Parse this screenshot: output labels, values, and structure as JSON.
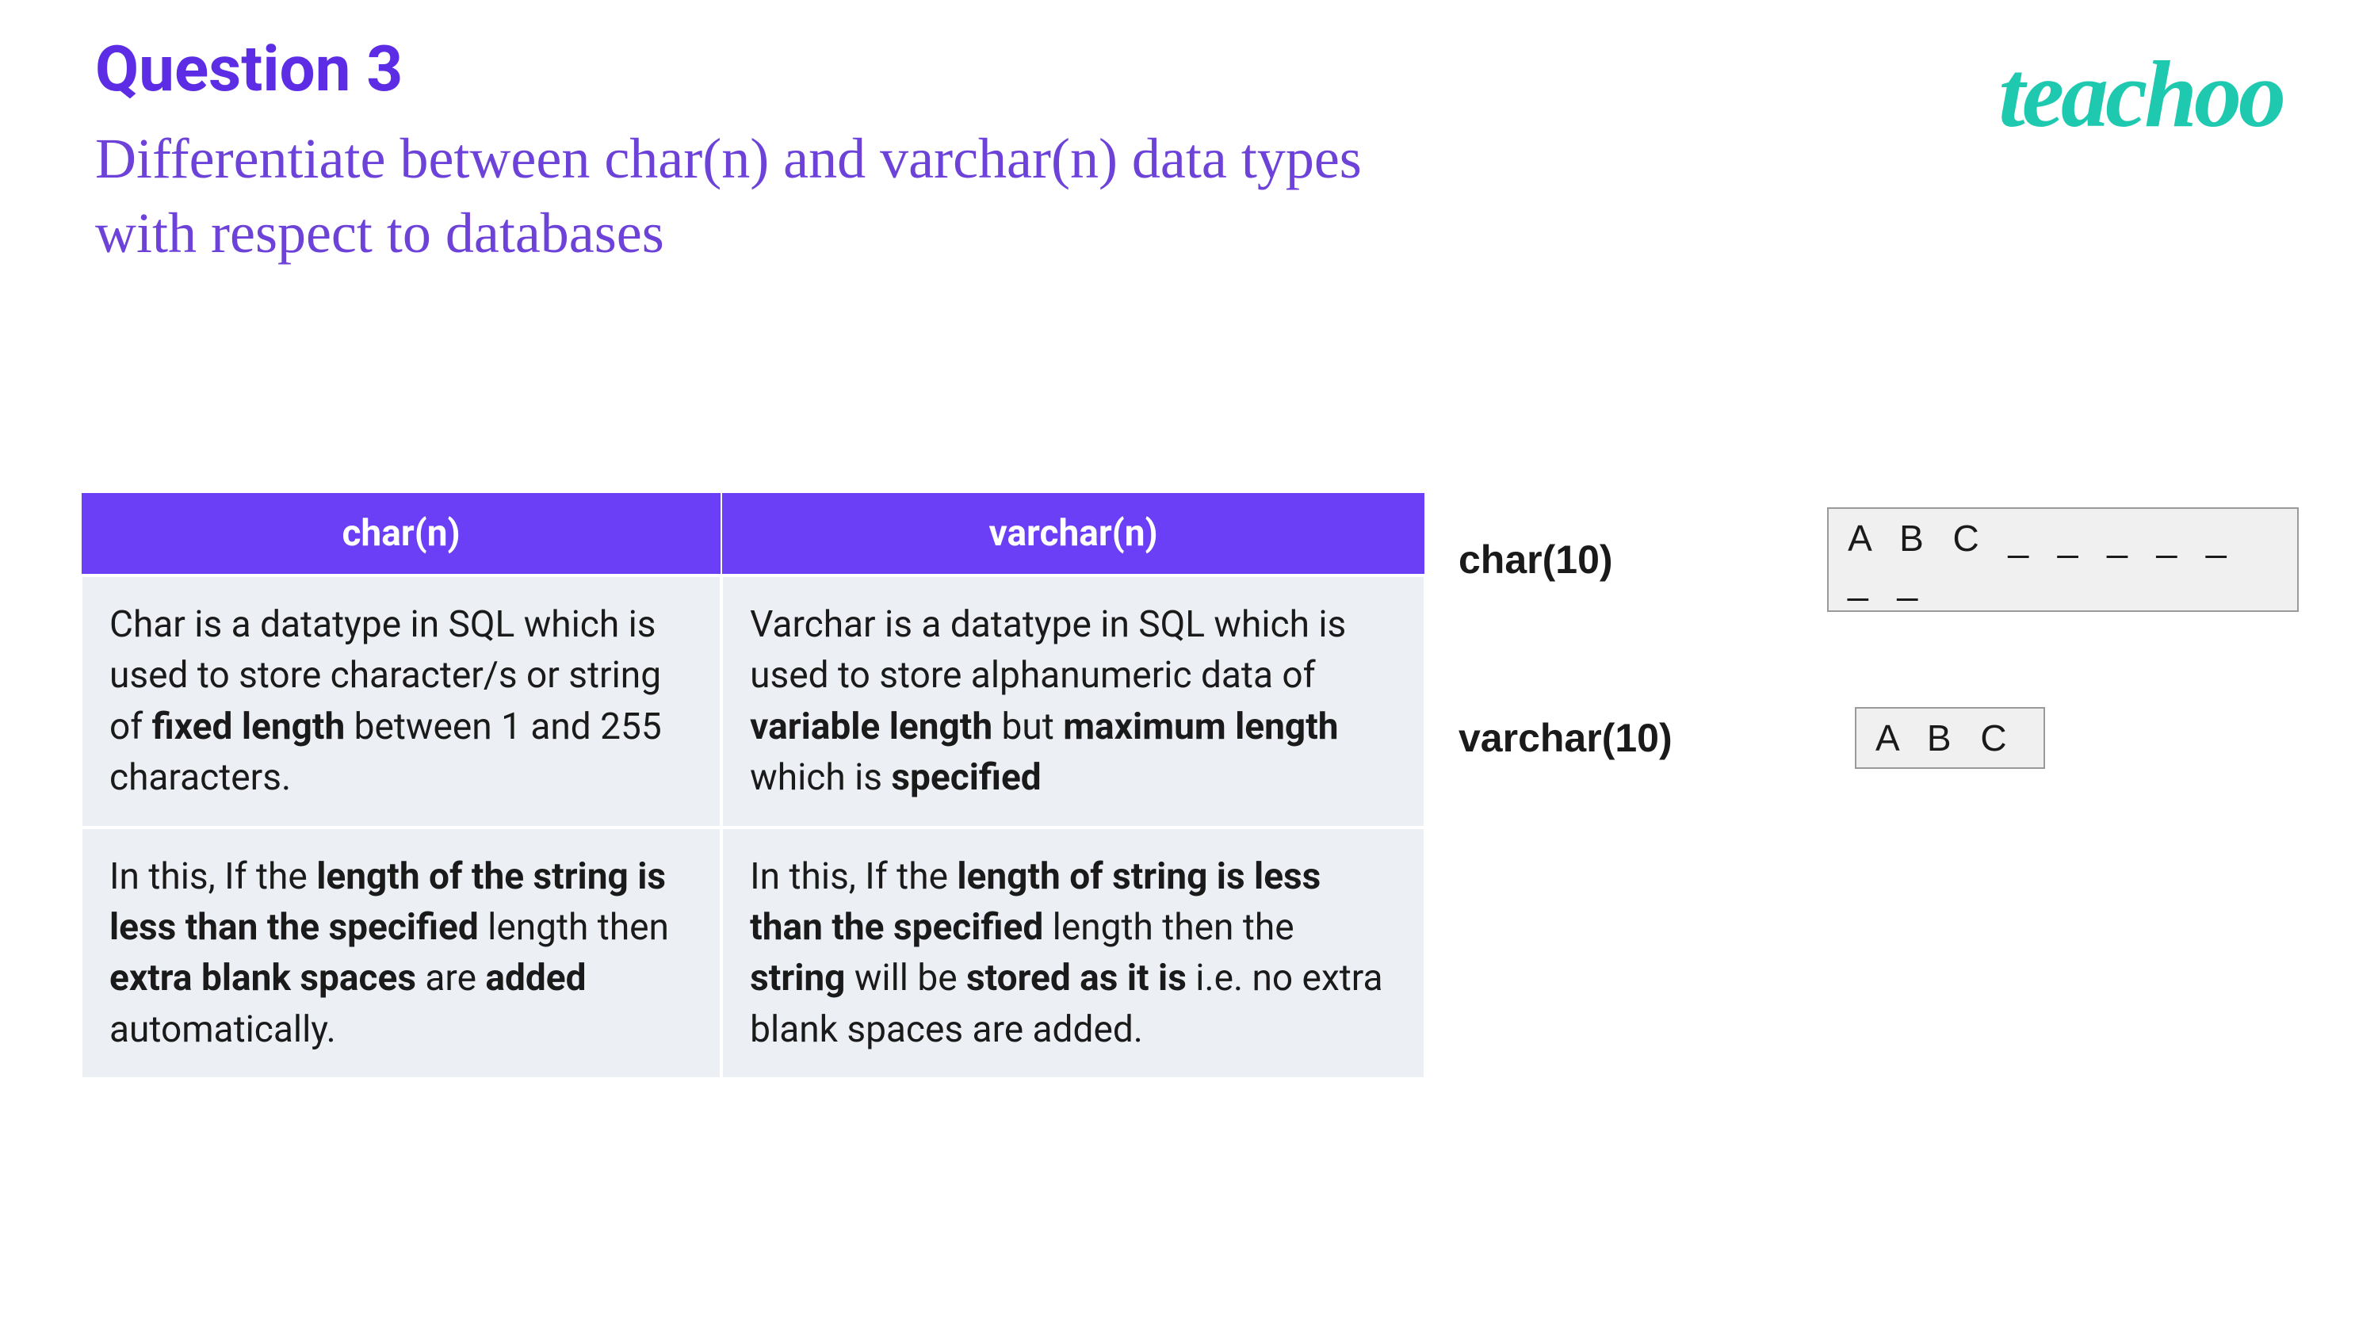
{
  "colors": {
    "title_purple": "#5d2de6",
    "subtitle_purple": "#6d42d9",
    "logo_teal": "#1fc9b0",
    "table_header_bg": "#6b3ff5",
    "table_header_text": "#ffffff",
    "table_cell_bg": "#eceff4",
    "table_border": "#ffffff",
    "example_box_bg": "#f0f0f0",
    "example_box_border": "#9a9a9a",
    "text_black": "#1a1a1a"
  },
  "header": {
    "question_number": "Question 3",
    "question_text": "Differentiate between char(n) and varchar(n) data types with respect to databases",
    "logo": "teachoo"
  },
  "table": {
    "columns": [
      "char(n)",
      "varchar(n)"
    ],
    "rows": [
      [
        {
          "segments": [
            {
              "t": "Char is a datatype in SQL which is used to store character/s or string of ",
              "b": false
            },
            {
              "t": "fixed length",
              "b": true
            },
            {
              "t": " between 1 and 255 characters.",
              "b": false
            }
          ]
        },
        {
          "segments": [
            {
              "t": "Varchar is a datatype in SQL which is used to store alphanumeric data of ",
              "b": false
            },
            {
              "t": "variable length",
              "b": true
            },
            {
              "t": " but ",
              "b": false
            },
            {
              "t": "maximum length",
              "b": true
            },
            {
              "t": " which is ",
              "b": false
            },
            {
              "t": "specified",
              "b": true
            }
          ]
        }
      ],
      [
        {
          "segments": [
            {
              "t": "In this, If the ",
              "b": false
            },
            {
              "t": "length of the string is less than the specified",
              "b": true
            },
            {
              "t": " length then ",
              "b": false
            },
            {
              "t": "extra blank spaces",
              "b": true
            },
            {
              "t": " are ",
              "b": false
            },
            {
              "t": "added",
              "b": true
            },
            {
              "t": " automatically.",
              "b": false
            }
          ]
        },
        {
          "segments": [
            {
              "t": "In this, If the ",
              "b": false
            },
            {
              "t": "length of string is less than the specified",
              "b": true
            },
            {
              "t": " length then the ",
              "b": false
            },
            {
              "t": "string",
              "b": true
            },
            {
              "t": " will be ",
              "b": false
            },
            {
              "t": "stored as it is",
              "b": true
            },
            {
              "t": " i.e. no extra blank spaces are added.",
              "b": false
            }
          ]
        }
      ]
    ]
  },
  "examples": {
    "char": {
      "label": "char(10)",
      "box": "A B C _ _ _ _ _ _ _"
    },
    "varchar": {
      "label": "varchar(10)",
      "box": "A B C"
    }
  }
}
